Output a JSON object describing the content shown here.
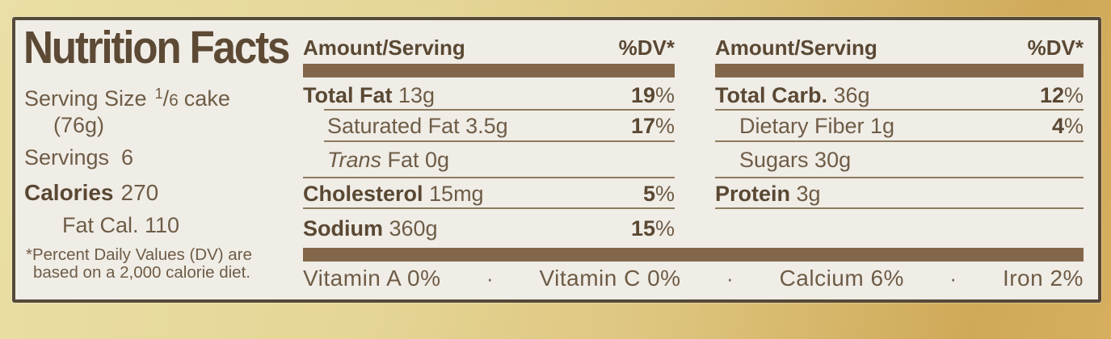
{
  "nutrition": {
    "title": "Nutrition Facts",
    "serving_size_label": "Serving Size",
    "fraction_numerator": "1",
    "fraction_slash": "/",
    "fraction_denominator": "6",
    "serving_unit": "cake",
    "serving_weight": "(76g)",
    "servings_label": "Servings",
    "servings_value": "6",
    "calories_label": "Calories",
    "calories_value": "270",
    "fat_calories": "Fat Cal. 110",
    "footnote_line1": "*Percent Daily Values (DV) are",
    "footnote_line2": "based on a 2,000 calorie diet."
  },
  "columns": {
    "left": {
      "header_amount": "Amount/Serving",
      "header_dv": "%DV*",
      "rows": [
        {
          "lead": "Total Fat",
          "rest": " 13g",
          "dv": "19",
          "pct": "%"
        },
        {
          "lead": "",
          "rest": "Saturated Fat 3.5g",
          "dv": "17",
          "pct": "%"
        },
        {
          "lead": "Trans",
          "rest": " Fat 0g",
          "dv": "",
          "pct": ""
        },
        {
          "lead": "Cholesterol",
          "rest": " 15mg",
          "dv": "5",
          "pct": "%"
        },
        {
          "lead": "Sodium",
          "rest": " 360g",
          "dv": "15",
          "pct": "%"
        }
      ]
    },
    "right": {
      "header_amount": "Amount/Serving",
      "header_dv": "%DV*",
      "rows": [
        {
          "lead": "Total Carb.",
          "rest": " 36g",
          "dv": "12",
          "pct": "%"
        },
        {
          "lead": "",
          "rest": "Dietary Fiber 1g",
          "dv": "4",
          "pct": "%"
        },
        {
          "lead": "",
          "rest": "Sugars 30g",
          "dv": "",
          "pct": ""
        },
        {
          "lead": "Protein",
          "rest": " 3g",
          "dv": "",
          "pct": ""
        }
      ]
    }
  },
  "micronutrients": {
    "separator": "·",
    "items": [
      "Vitamin A 0%",
      "Vitamin C 0%",
      "Calcium 6%",
      "Iron 2%"
    ]
  },
  "colors": {
    "paper": "#f0ede7",
    "border": "#554938",
    "bar": "#83674a",
    "text": "#6e5c46",
    "bold_text": "#5a4833",
    "background_gold": "#d0a958"
  }
}
